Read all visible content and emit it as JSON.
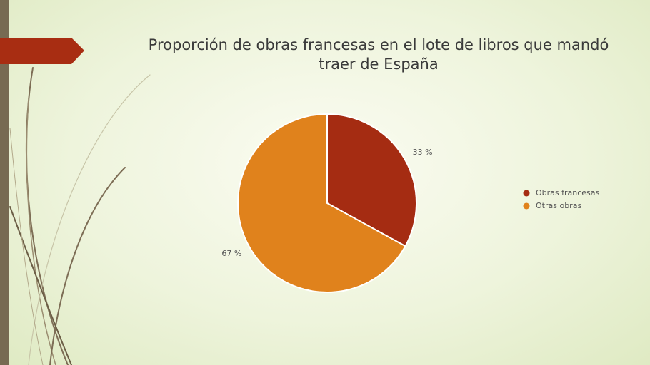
{
  "chart_data": {
    "type": "pie",
    "title": "Proporción de obras francesas en el lote de libros que mandó traer de España",
    "categories": [
      "Obras francesas",
      "Otras obras"
    ],
    "values": [
      33,
      67
    ],
    "value_labels": [
      "33 %",
      "67 %"
    ],
    "colors": [
      "#a52c12",
      "#e0821c"
    ],
    "legend": "right"
  }
}
